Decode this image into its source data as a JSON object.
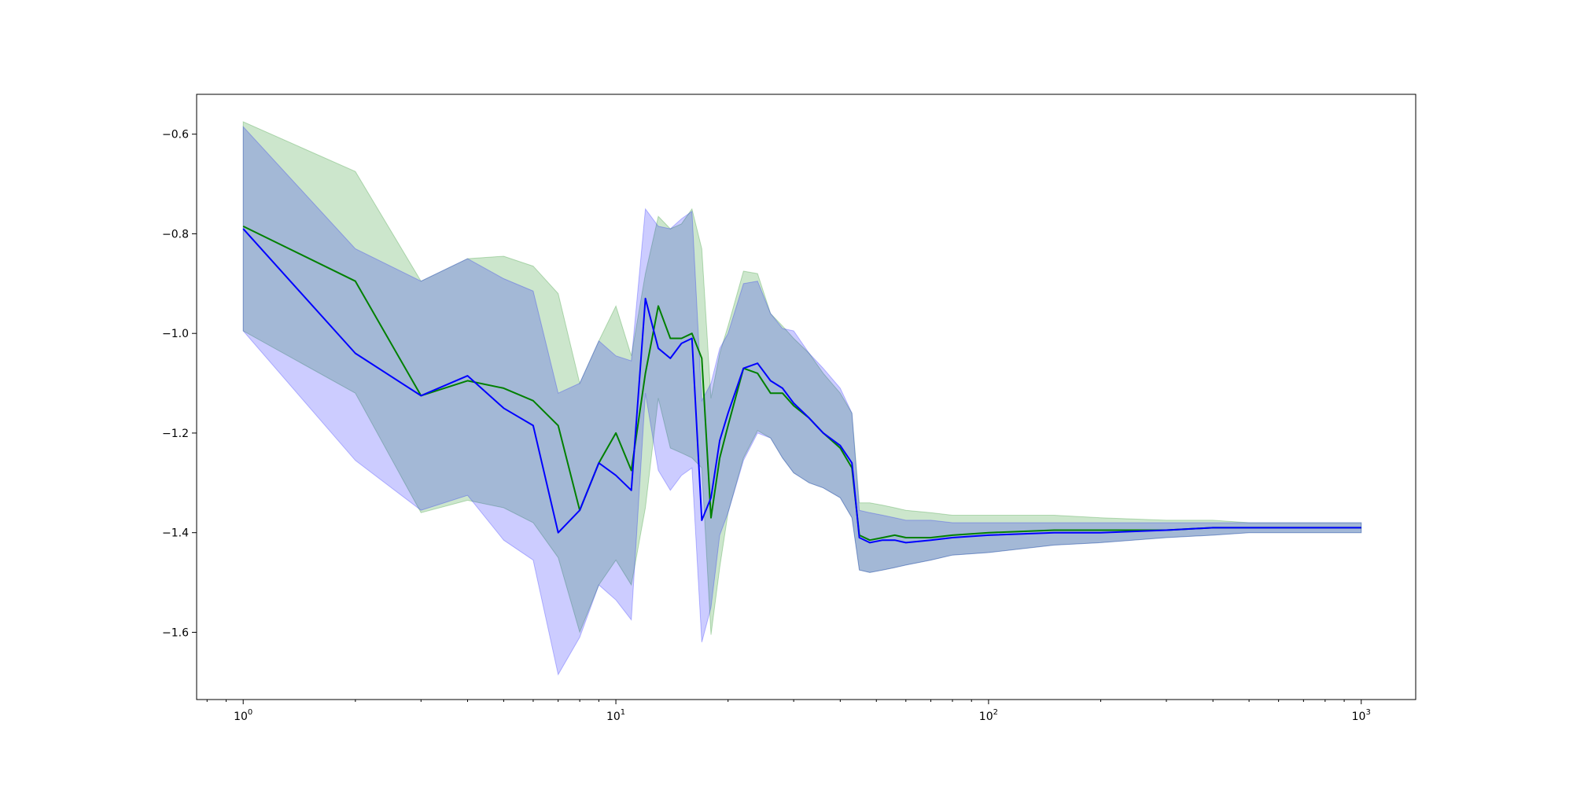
{
  "chart_data": {
    "type": "line",
    "x_scale": "log",
    "xlim": [
      0.75,
      1400
    ],
    "ylim": [
      -1.735,
      -0.52
    ],
    "grid": false,
    "legend": "none",
    "x_ticks": [
      {
        "value": 1,
        "base": "10",
        "exp": "0"
      },
      {
        "value": 10,
        "base": "10",
        "exp": "1"
      },
      {
        "value": 100,
        "base": "10",
        "exp": "2"
      },
      {
        "value": 1000,
        "base": "10",
        "exp": "3"
      }
    ],
    "y_ticks": [
      {
        "value": -0.6,
        "label": "−0.6"
      },
      {
        "value": -0.8,
        "label": "−0.8"
      },
      {
        "value": -1.0,
        "label": "−1.0"
      },
      {
        "value": -1.2,
        "label": "−1.2"
      },
      {
        "value": -1.4,
        "label": "−1.4"
      },
      {
        "value": -1.6,
        "label": "−1.6"
      }
    ],
    "series": [
      {
        "color": "#008000",
        "band_color": "#008000",
        "band_opacity": 0.2,
        "x": [
          1,
          2,
          3,
          4,
          5,
          6,
          7,
          8,
          9,
          10,
          11,
          12,
          13,
          14,
          15,
          16,
          17,
          18,
          19,
          20,
          22,
          24,
          26,
          28,
          30,
          33,
          36,
          40,
          43,
          45,
          48,
          52,
          56,
          60,
          70,
          80,
          100,
          150,
          200,
          300,
          400,
          500,
          700,
          1000
        ],
        "mean": [
          -0.785,
          -0.895,
          -1.125,
          -1.095,
          -1.11,
          -1.135,
          -1.185,
          -1.355,
          -1.26,
          -1.2,
          -1.275,
          -1.08,
          -0.945,
          -1.01,
          -1.01,
          -1.0,
          -1.05,
          -1.37,
          -1.25,
          -1.185,
          -1.07,
          -1.08,
          -1.12,
          -1.12,
          -1.145,
          -1.17,
          -1.2,
          -1.23,
          -1.27,
          -1.405,
          -1.415,
          -1.41,
          -1.405,
          -1.41,
          -1.41,
          -1.405,
          -1.4,
          -1.395,
          -1.395,
          -1.395,
          -1.39,
          -1.39,
          -1.39,
          -1.39
        ],
        "upper": [
          -0.575,
          -0.675,
          -0.895,
          -0.85,
          -0.845,
          -0.865,
          -0.92,
          -1.1,
          -1.015,
          -0.945,
          -1.045,
          -0.88,
          -0.765,
          -0.79,
          -0.78,
          -0.75,
          -0.83,
          -1.13,
          -1.04,
          -0.985,
          -0.875,
          -0.88,
          -0.96,
          -0.985,
          -1.01,
          -1.04,
          -1.08,
          -1.12,
          -1.16,
          -1.34,
          -1.34,
          -1.345,
          -1.35,
          -1.355,
          -1.36,
          -1.365,
          -1.365,
          -1.365,
          -1.37,
          -1.375,
          -1.375,
          -1.38,
          -1.38,
          -1.38
        ],
        "lower": [
          -0.995,
          -1.12,
          -1.36,
          -1.335,
          -1.35,
          -1.38,
          -1.45,
          -1.6,
          -1.505,
          -1.455,
          -1.505,
          -1.35,
          -1.13,
          -1.23,
          -1.24,
          -1.25,
          -1.27,
          -1.605,
          -1.47,
          -1.36,
          -1.25,
          -1.195,
          -1.21,
          -1.25,
          -1.28,
          -1.3,
          -1.31,
          -1.33,
          -1.37,
          -1.475,
          -1.48,
          -1.475,
          -1.47,
          -1.465,
          -1.455,
          -1.445,
          -1.44,
          -1.425,
          -1.42,
          -1.41,
          -1.405,
          -1.4,
          -1.4,
          -1.4
        ]
      },
      {
        "color": "#0000ff",
        "band_color": "#0000ff",
        "band_opacity": 0.2,
        "x": [
          1,
          2,
          3,
          4,
          5,
          6,
          7,
          8,
          9,
          10,
          11,
          12,
          13,
          14,
          15,
          16,
          17,
          18,
          19,
          20,
          22,
          24,
          26,
          28,
          30,
          33,
          36,
          40,
          43,
          45,
          48,
          52,
          56,
          60,
          70,
          80,
          100,
          150,
          200,
          300,
          400,
          500,
          700,
          1000
        ],
        "mean": [
          -0.79,
          -1.04,
          -1.125,
          -1.085,
          -1.15,
          -1.185,
          -1.4,
          -1.355,
          -1.26,
          -1.285,
          -1.315,
          -0.93,
          -1.03,
          -1.05,
          -1.02,
          -1.01,
          -1.375,
          -1.33,
          -1.215,
          -1.16,
          -1.07,
          -1.06,
          -1.095,
          -1.11,
          -1.14,
          -1.17,
          -1.2,
          -1.225,
          -1.26,
          -1.41,
          -1.42,
          -1.415,
          -1.415,
          -1.42,
          -1.415,
          -1.41,
          -1.405,
          -1.4,
          -1.4,
          -1.395,
          -1.39,
          -1.39,
          -1.39,
          -1.39
        ],
        "upper": [
          -0.585,
          -0.83,
          -0.895,
          -0.85,
          -0.89,
          -0.915,
          -1.12,
          -1.1,
          -1.015,
          -1.045,
          -1.055,
          -0.75,
          -0.785,
          -0.79,
          -0.77,
          -0.755,
          -1.135,
          -1.1,
          -1.03,
          -1.0,
          -0.9,
          -0.895,
          -0.96,
          -0.99,
          -0.995,
          -1.04,
          -1.07,
          -1.11,
          -1.16,
          -1.355,
          -1.36,
          -1.365,
          -1.37,
          -1.375,
          -1.375,
          -1.38,
          -1.38,
          -1.38,
          -1.38,
          -1.38,
          -1.38,
          -1.38,
          -1.38,
          -1.38
        ],
        "lower": [
          -0.995,
          -1.255,
          -1.355,
          -1.325,
          -1.415,
          -1.455,
          -1.685,
          -1.61,
          -1.505,
          -1.535,
          -1.575,
          -1.12,
          -1.275,
          -1.315,
          -1.285,
          -1.27,
          -1.62,
          -1.55,
          -1.405,
          -1.36,
          -1.255,
          -1.2,
          -1.21,
          -1.25,
          -1.28,
          -1.3,
          -1.31,
          -1.33,
          -1.37,
          -1.475,
          -1.48,
          -1.475,
          -1.47,
          -1.465,
          -1.455,
          -1.445,
          -1.44,
          -1.425,
          -1.42,
          -1.41,
          -1.405,
          -1.4,
          -1.4,
          -1.4
        ]
      }
    ]
  }
}
